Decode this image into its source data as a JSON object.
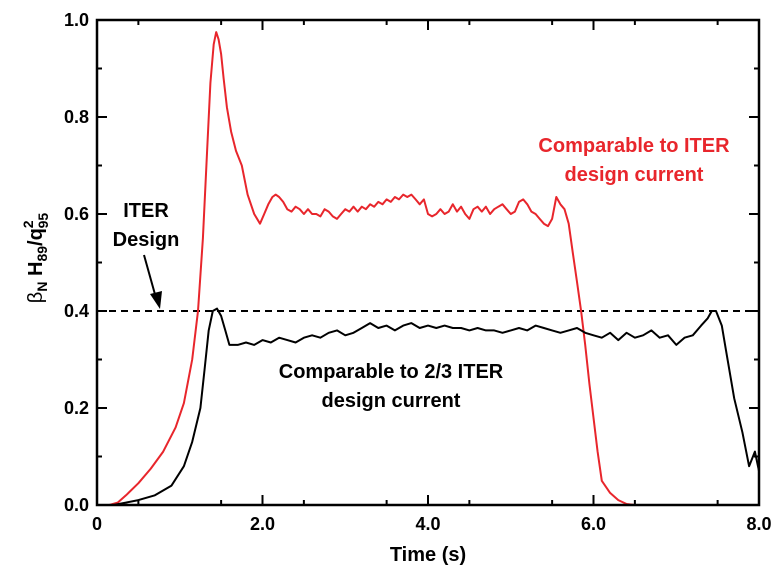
{
  "chart_data": {
    "type": "line",
    "title": "",
    "xlabel": "Time (s)",
    "ylabel": {
      "base": "β",
      "sub1": "N",
      "mid": " H",
      "sub2": "89",
      "slash": "/q",
      "sup3": "2",
      "sub3": "95"
    },
    "xlim": [
      0,
      8.0
    ],
    "ylim": [
      0,
      1.0
    ],
    "xticks": [
      {
        "value": 0,
        "label": "0"
      },
      {
        "value": 2,
        "label": "2.0"
      },
      {
        "value": 4,
        "label": "4.0"
      },
      {
        "value": 6,
        "label": "6.0"
      },
      {
        "value": 8,
        "label": "8.0"
      }
    ],
    "yticks": [
      {
        "value": 0.0,
        "label": "0.0"
      },
      {
        "value": 0.2,
        "label": "0.2"
      },
      {
        "value": 0.4,
        "label": "0.4"
      },
      {
        "value": 0.6,
        "label": "0.6"
      },
      {
        "value": 0.8,
        "label": "0.8"
      },
      {
        "value": 1.0,
        "label": "1.0"
      }
    ],
    "grid": false,
    "reference_line": {
      "y": 0.4,
      "style": "dashed",
      "color": "#000000"
    },
    "series": [
      {
        "color": "#e8262c",
        "x": [
          0.15,
          0.25,
          0.35,
          0.5,
          0.65,
          0.8,
          0.95,
          1.05,
          1.15,
          1.22,
          1.28,
          1.33,
          1.37,
          1.41,
          1.44,
          1.47,
          1.5,
          1.53,
          1.57,
          1.62,
          1.68,
          1.75,
          1.82,
          1.9,
          1.97,
          2.02,
          2.07,
          2.12,
          2.16,
          2.2,
          2.25,
          2.3,
          2.35,
          2.4,
          2.45,
          2.5,
          2.55,
          2.6,
          2.65,
          2.7,
          2.75,
          2.8,
          2.85,
          2.9,
          2.95,
          3.0,
          3.05,
          3.1,
          3.15,
          3.2,
          3.25,
          3.3,
          3.35,
          3.4,
          3.45,
          3.5,
          3.55,
          3.6,
          3.65,
          3.7,
          3.75,
          3.8,
          3.85,
          3.9,
          3.95,
          4.0,
          4.05,
          4.1,
          4.15,
          4.2,
          4.25,
          4.3,
          4.35,
          4.4,
          4.45,
          4.5,
          4.55,
          4.6,
          4.65,
          4.7,
          4.75,
          4.8,
          4.85,
          4.9,
          4.95,
          5.0,
          5.05,
          5.1,
          5.15,
          5.2,
          5.25,
          5.3,
          5.35,
          5.4,
          5.45,
          5.5,
          5.55,
          5.6,
          5.65,
          5.7,
          5.75,
          5.8,
          5.85,
          5.9,
          5.95,
          6.0,
          6.05,
          6.1,
          6.2,
          6.3,
          6.4,
          6.5,
          6.7,
          7.0
        ],
        "y": [
          0.0,
          0.005,
          0.02,
          0.045,
          0.075,
          0.11,
          0.16,
          0.21,
          0.3,
          0.4,
          0.55,
          0.73,
          0.87,
          0.95,
          0.975,
          0.96,
          0.93,
          0.88,
          0.82,
          0.77,
          0.73,
          0.7,
          0.64,
          0.6,
          0.58,
          0.6,
          0.62,
          0.635,
          0.64,
          0.635,
          0.625,
          0.61,
          0.605,
          0.615,
          0.61,
          0.6,
          0.61,
          0.6,
          0.6,
          0.595,
          0.61,
          0.605,
          0.595,
          0.59,
          0.6,
          0.61,
          0.605,
          0.615,
          0.605,
          0.615,
          0.61,
          0.62,
          0.615,
          0.625,
          0.62,
          0.63,
          0.625,
          0.635,
          0.63,
          0.64,
          0.635,
          0.64,
          0.63,
          0.62,
          0.63,
          0.6,
          0.595,
          0.6,
          0.61,
          0.6,
          0.605,
          0.62,
          0.605,
          0.615,
          0.6,
          0.59,
          0.61,
          0.615,
          0.605,
          0.615,
          0.6,
          0.61,
          0.615,
          0.62,
          0.61,
          0.6,
          0.605,
          0.625,
          0.63,
          0.62,
          0.605,
          0.6,
          0.59,
          0.58,
          0.575,
          0.59,
          0.635,
          0.62,
          0.61,
          0.58,
          0.52,
          0.46,
          0.4,
          0.33,
          0.25,
          0.18,
          0.11,
          0.05,
          0.025,
          0.01,
          0.002,
          0.0,
          0.0,
          0.0
        ]
      },
      {
        "color": "#000000",
        "x": [
          0.2,
          0.35,
          0.5,
          0.7,
          0.9,
          1.05,
          1.15,
          1.25,
          1.3,
          1.35,
          1.4,
          1.45,
          1.5,
          1.55,
          1.6,
          1.7,
          1.8,
          1.9,
          2.0,
          2.1,
          2.2,
          2.3,
          2.4,
          2.5,
          2.6,
          2.7,
          2.8,
          2.9,
          3.0,
          3.1,
          3.2,
          3.3,
          3.4,
          3.5,
          3.6,
          3.7,
          3.8,
          3.9,
          4.0,
          4.1,
          4.2,
          4.3,
          4.4,
          4.5,
          4.6,
          4.7,
          4.8,
          4.9,
          5.0,
          5.1,
          5.2,
          5.3,
          5.4,
          5.5,
          5.6,
          5.7,
          5.8,
          5.9,
          6.0,
          6.1,
          6.2,
          6.3,
          6.4,
          6.5,
          6.6,
          6.7,
          6.8,
          6.9,
          7.0,
          7.1,
          7.2,
          7.3,
          7.38,
          7.43,
          7.48,
          7.55,
          7.6,
          7.7,
          7.8,
          7.88,
          7.95,
          8.0
        ],
        "y": [
          0.0,
          0.005,
          0.01,
          0.02,
          0.04,
          0.08,
          0.13,
          0.2,
          0.28,
          0.36,
          0.4,
          0.405,
          0.39,
          0.36,
          0.33,
          0.33,
          0.335,
          0.33,
          0.34,
          0.335,
          0.345,
          0.34,
          0.335,
          0.345,
          0.35,
          0.345,
          0.355,
          0.36,
          0.35,
          0.355,
          0.365,
          0.375,
          0.365,
          0.37,
          0.36,
          0.37,
          0.375,
          0.365,
          0.37,
          0.365,
          0.37,
          0.365,
          0.365,
          0.36,
          0.365,
          0.36,
          0.36,
          0.355,
          0.36,
          0.365,
          0.36,
          0.37,
          0.365,
          0.36,
          0.355,
          0.36,
          0.365,
          0.355,
          0.35,
          0.345,
          0.355,
          0.34,
          0.355,
          0.345,
          0.35,
          0.36,
          0.345,
          0.35,
          0.33,
          0.345,
          0.35,
          0.37,
          0.385,
          0.4,
          0.4,
          0.37,
          0.32,
          0.22,
          0.15,
          0.08,
          0.11,
          0.07
        ]
      }
    ],
    "annotations": [
      {
        "id": "red-label",
        "lines": [
          "Comparable to ITER",
          "design current"
        ],
        "color": "#e8262c"
      },
      {
        "id": "black-label",
        "lines": [
          "Comparable to 2/3 ITER",
          "design current"
        ],
        "color": "#000000"
      },
      {
        "id": "iter-design-label",
        "lines": [
          "ITER",
          "Design"
        ],
        "color": "#000000"
      }
    ]
  }
}
